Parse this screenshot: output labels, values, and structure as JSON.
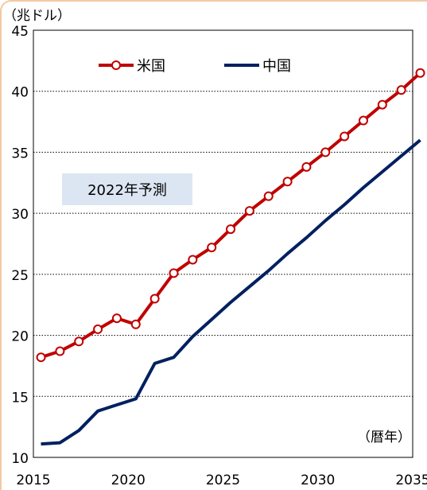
{
  "chart_data": {
    "type": "line",
    "y_unit_label": "（兆ドル）",
    "x_unit_label": "（暦年）",
    "annotation": "2022年予測",
    "xlim": [
      2015,
      2035
    ],
    "ylim": [
      10,
      45
    ],
    "x_ticks": [
      2015,
      2020,
      2025,
      2030,
      2035
    ],
    "y_ticks": [
      10,
      15,
      20,
      25,
      30,
      35,
      40,
      45
    ],
    "grid": "horizontal-dotted",
    "legend_position": "top-left",
    "series": [
      {
        "name": "米国",
        "color": "#c00000",
        "marker": "circle-open",
        "points": [
          [
            2015.4,
            18.2
          ],
          [
            2016.4,
            18.7
          ],
          [
            2017.4,
            19.5
          ],
          [
            2018.4,
            20.5
          ],
          [
            2019.4,
            21.4
          ],
          [
            2020.4,
            20.9
          ],
          [
            2021.4,
            23.0
          ],
          [
            2022.4,
            25.1
          ],
          [
            2023.4,
            26.2
          ],
          [
            2024.4,
            27.2
          ],
          [
            2025.4,
            28.7
          ],
          [
            2026.4,
            30.2
          ],
          [
            2027.4,
            31.4
          ],
          [
            2028.4,
            32.6
          ],
          [
            2029.4,
            33.8
          ],
          [
            2030.4,
            35.0
          ],
          [
            2031.4,
            36.3
          ],
          [
            2032.4,
            37.6
          ],
          [
            2033.4,
            38.9
          ],
          [
            2034.4,
            40.1
          ],
          [
            2035.4,
            41.5
          ]
        ]
      },
      {
        "name": "中国",
        "color": "#002060",
        "marker": "none",
        "points": [
          [
            2015.4,
            11.1
          ],
          [
            2016.4,
            11.2
          ],
          [
            2017.4,
            12.2
          ],
          [
            2018.4,
            13.8
          ],
          [
            2019.4,
            14.3
          ],
          [
            2020.4,
            14.8
          ],
          [
            2021.4,
            17.7
          ],
          [
            2022.4,
            18.2
          ],
          [
            2023.4,
            19.9
          ],
          [
            2024.4,
            21.3
          ],
          [
            2025.4,
            22.7
          ],
          [
            2026.4,
            24.0
          ],
          [
            2027.4,
            25.3
          ],
          [
            2028.4,
            26.7
          ],
          [
            2029.4,
            28.0
          ],
          [
            2030.4,
            29.4
          ],
          [
            2031.4,
            30.7
          ],
          [
            2032.4,
            32.1
          ],
          [
            2033.4,
            33.4
          ],
          [
            2034.4,
            34.7
          ],
          [
            2035.4,
            36.0
          ]
        ]
      }
    ]
  }
}
